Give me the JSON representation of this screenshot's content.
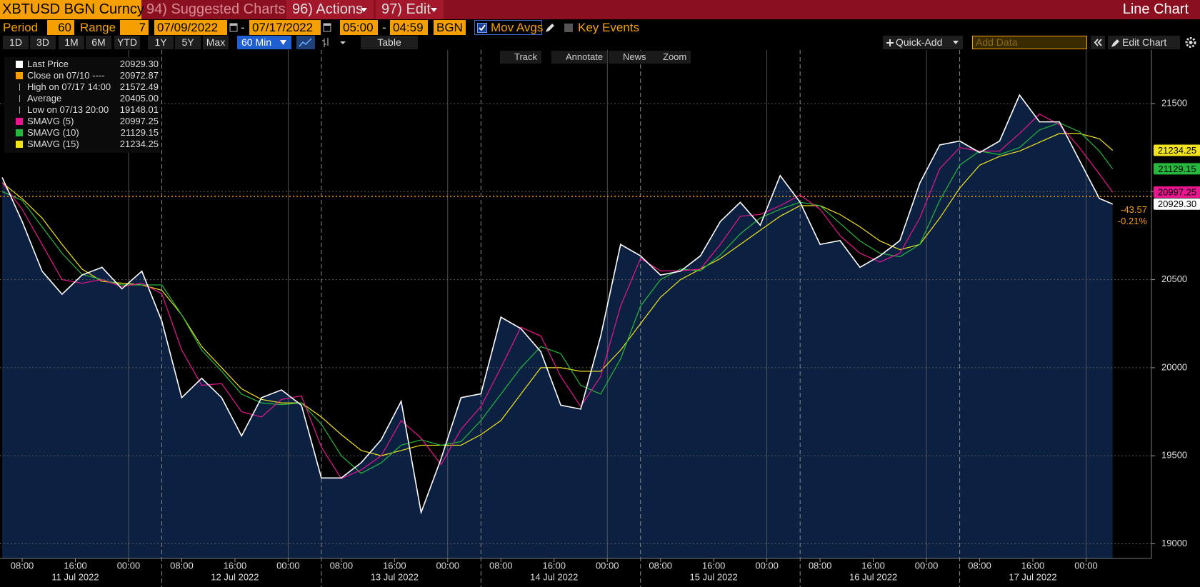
{
  "ui": {
    "security": "XBTUSD BGN Curncy",
    "menu": [
      "94) Suggested Charts",
      "96) Actions",
      "97) Edit"
    ],
    "view": "Line Chart",
    "period_label": "Period",
    "period": "60",
    "range_label": "Range",
    "range": "7",
    "start_date": "07/09/2022",
    "dash": "-",
    "end_date": "07/17/2022",
    "start_time": "05:00",
    "end_time": "04:59",
    "source": "BGN",
    "mov_avgs": "Mov Avgs",
    "key_events": "Key Events",
    "ranges": [
      "1D",
      "3D",
      "1M",
      "6M",
      "YTD",
      "1Y",
      "5Y",
      "Max"
    ],
    "interval": "60 Min",
    "table": "Table",
    "quick_add": "Quick-Add",
    "add_data": "Add Data",
    "edit_chart": "Edit Chart",
    "tools": [
      "Track",
      "Annotate",
      "News",
      "Zoom"
    ],
    "change": "-43.57",
    "change_pct": "-0.21%"
  },
  "chart_data": {
    "type": "line",
    "x": [
      "2022-07-11 05:00",
      "2022-07-11 08:00",
      "2022-07-11 11:00",
      "2022-07-11 14:00",
      "2022-07-11 17:00",
      "2022-07-11 20:00",
      "2022-07-11 23:00",
      "2022-07-12 02:00",
      "2022-07-12 05:00",
      "2022-07-12 08:00",
      "2022-07-12 11:00",
      "2022-07-12 14:00",
      "2022-07-12 17:00",
      "2022-07-12 20:00",
      "2022-07-12 23:00",
      "2022-07-13 02:00",
      "2022-07-13 05:00",
      "2022-07-13 08:00",
      "2022-07-13 11:00",
      "2022-07-13 14:00",
      "2022-07-13 17:00",
      "2022-07-13 20:00",
      "2022-07-13 23:00",
      "2022-07-14 02:00",
      "2022-07-14 05:00",
      "2022-07-14 08:00",
      "2022-07-14 11:00",
      "2022-07-14 14:00",
      "2022-07-14 17:00",
      "2022-07-14 20:00",
      "2022-07-14 23:00",
      "2022-07-15 02:00",
      "2022-07-15 05:00",
      "2022-07-15 08:00",
      "2022-07-15 11:00",
      "2022-07-15 14:00",
      "2022-07-15 17:00",
      "2022-07-15 20:00",
      "2022-07-15 23:00",
      "2022-07-16 02:00",
      "2022-07-16 05:00",
      "2022-07-16 08:00",
      "2022-07-16 11:00",
      "2022-07-16 14:00",
      "2022-07-16 17:00",
      "2022-07-16 20:00",
      "2022-07-16 23:00",
      "2022-07-17 02:00",
      "2022-07-17 05:00",
      "2022-07-17 08:00",
      "2022-07-17 11:00",
      "2022-07-17 14:00",
      "2022-07-17 17:00",
      "2022-07-17 20:00",
      "2022-07-17 23:00",
      "2022-07-18 02:00",
      "2022-07-18 04:00"
    ],
    "series": [
      {
        "name": "Last Price",
        "color": "#ffffff",
        "last": {
          "value": 20929.3,
          "label": "20929.30"
        },
        "values": [
          21080,
          20830,
          20548,
          20417,
          20526,
          20570,
          20448,
          20548,
          20265,
          19830,
          19940,
          19830,
          19613,
          19830,
          19874,
          19787,
          19374,
          19374,
          19461,
          19591,
          19809,
          19178,
          19483,
          19830,
          19852,
          20287,
          20222,
          20091,
          19787,
          19765,
          20178,
          20700,
          20635,
          20526,
          20548,
          20635,
          20830,
          20939,
          20809,
          21091,
          20939,
          20700,
          20722,
          20570,
          20635,
          20722,
          21048,
          21265,
          21287,
          21222,
          21287,
          21548,
          21396,
          21396,
          21178,
          20961,
          20929.3
        ]
      },
      {
        "name": "SMAVG (5)",
        "color": "#e8168f",
        "last": {
          "value": 20997.25,
          "label": "20997.25"
        },
        "values": [
          21050,
          20900,
          20700,
          20500,
          20480,
          20500,
          20460,
          20480,
          20420,
          20100,
          19900,
          19910,
          19750,
          19720,
          19820,
          19840,
          19550,
          19370,
          19420,
          19500,
          19700,
          19600,
          19450,
          19650,
          19780,
          20000,
          20230,
          20180,
          19950,
          19780,
          19950,
          20350,
          20620,
          20550,
          20550,
          20560,
          20700,
          20860,
          20870,
          20920,
          20980,
          20900,
          20750,
          20650,
          20600,
          20650,
          20850,
          21130,
          21250,
          21230,
          21230,
          21330,
          21440,
          21380,
          21250,
          21100,
          20997.25
        ]
      },
      {
        "name": "SMAVG (10)",
        "color": "#25b83c",
        "last": {
          "value": 21129.15,
          "label": "21129.15"
        },
        "values": [
          21000,
          20950,
          20800,
          20650,
          20530,
          20500,
          20470,
          20470,
          20470,
          20300,
          20100,
          19980,
          19850,
          19800,
          19790,
          19800,
          19680,
          19500,
          19400,
          19460,
          19560,
          19590,
          19560,
          19580,
          19700,
          19850,
          20000,
          20120,
          20080,
          19900,
          19850,
          20050,
          20350,
          20500,
          20560,
          20550,
          20640,
          20760,
          20850,
          20900,
          20940,
          20920,
          20820,
          20720,
          20650,
          20630,
          20700,
          20950,
          21150,
          21230,
          21210,
          21250,
          21350,
          21390,
          21340,
          21230,
          21129.15
        ]
      },
      {
        "name": "SMAVG (15)",
        "color": "#f2e41c",
        "last": {
          "value": 21234.25,
          "label": "21234.25"
        },
        "values": [
          21050,
          20960,
          20850,
          20700,
          20560,
          20490,
          20480,
          20470,
          20440,
          20300,
          20120,
          20000,
          19880,
          19820,
          19800,
          19800,
          19720,
          19620,
          19530,
          19500,
          19530,
          19560,
          19560,
          19560,
          19620,
          19700,
          19850,
          20000,
          20000,
          19980,
          19980,
          20100,
          20250,
          20400,
          20500,
          20560,
          20620,
          20700,
          20780,
          20860,
          20920,
          20920,
          20870,
          20800,
          20720,
          20670,
          20700,
          20850,
          21020,
          21150,
          21200,
          21230,
          21280,
          21330,
          21330,
          21300,
          21234.25
        ]
      }
    ],
    "stats": [
      {
        "name": "Close on 07/10 ----",
        "value": {
          "value": 20972.87,
          "label": "20972.87"
        },
        "color": "#f5a000"
      },
      {
        "name": "High on 07/17 14:00",
        "value": {
          "value": 21572.49,
          "label": "21572.49"
        }
      },
      {
        "name": "Average",
        "value": {
          "value": 20405.0,
          "label": "20405.00"
        }
      },
      {
        "name": "Low on 07/13 20:00",
        "value": {
          "value": 19148.01,
          "label": "19148.01"
        }
      }
    ],
    "xlim": [
      "2022-07-11 04:40",
      "2022-07-18 09:50"
    ],
    "ylim": [
      18917,
      21804
    ],
    "yticks": [
      19000,
      19500,
      20000,
      20500,
      21000,
      21500
    ],
    "xticks": [
      {
        "value": "2022-07-11 08:00",
        "label": "08:00"
      },
      {
        "value": "2022-07-11 16:00",
        "label": "16:00"
      },
      {
        "value": "2022-07-12 00:00",
        "label": "00:00"
      },
      {
        "value": "2022-07-12 08:00",
        "label": "08:00"
      },
      {
        "value": "2022-07-12 16:00",
        "label": "16:00"
      },
      {
        "value": "2022-07-13 00:00",
        "label": "00:00"
      },
      {
        "value": "2022-07-13 08:00",
        "label": "08:00"
      },
      {
        "value": "2022-07-13 16:00",
        "label": "16:00"
      },
      {
        "value": "2022-07-14 00:00",
        "label": "00:00"
      },
      {
        "value": "2022-07-14 08:00",
        "label": "08:00"
      },
      {
        "value": "2022-07-14 16:00",
        "label": "16:00"
      },
      {
        "value": "2022-07-15 00:00",
        "label": "00:00"
      },
      {
        "value": "2022-07-15 08:00",
        "label": "08:00"
      },
      {
        "value": "2022-07-15 16:00",
        "label": "16:00"
      },
      {
        "value": "2022-07-16 00:00",
        "label": "00:00"
      },
      {
        "value": "2022-07-16 08:00",
        "label": "08:00"
      },
      {
        "value": "2022-07-16 16:00",
        "label": "16:00"
      },
      {
        "value": "2022-07-17 00:00",
        "label": "00:00"
      },
      {
        "value": "2022-07-17 08:00",
        "label": "08:00"
      },
      {
        "value": "2022-07-17 16:00",
        "label": "16:00"
      },
      {
        "value": "2022-07-18 00:00",
        "label": "00:00"
      }
    ],
    "day_labels": [
      {
        "value": "2022-07-11 16:00",
        "label": "11 Jul 2022"
      },
      {
        "value": "2022-07-12 16:00",
        "label": "12 Jul 2022"
      },
      {
        "value": "2022-07-13 16:00",
        "label": "13 Jul 2022"
      },
      {
        "value": "2022-07-14 16:00",
        "label": "14 Jul 2022"
      },
      {
        "value": "2022-07-15 16:00",
        "label": "15 Jul 2022"
      },
      {
        "value": "2022-07-16 16:00",
        "label": "16 Jul 2022"
      },
      {
        "value": "2022-07-17 16:00",
        "label": "17 Jul 2022"
      }
    ],
    "day_breaks": [
      "2022-07-12 05:00",
      "2022-07-13 05:00",
      "2022-07-14 05:00",
      "2022-07-15 05:00",
      "2022-07-16 05:00",
      "2022-07-17 05:00"
    ],
    "grid": true,
    "area_color": "#0c2142"
  }
}
